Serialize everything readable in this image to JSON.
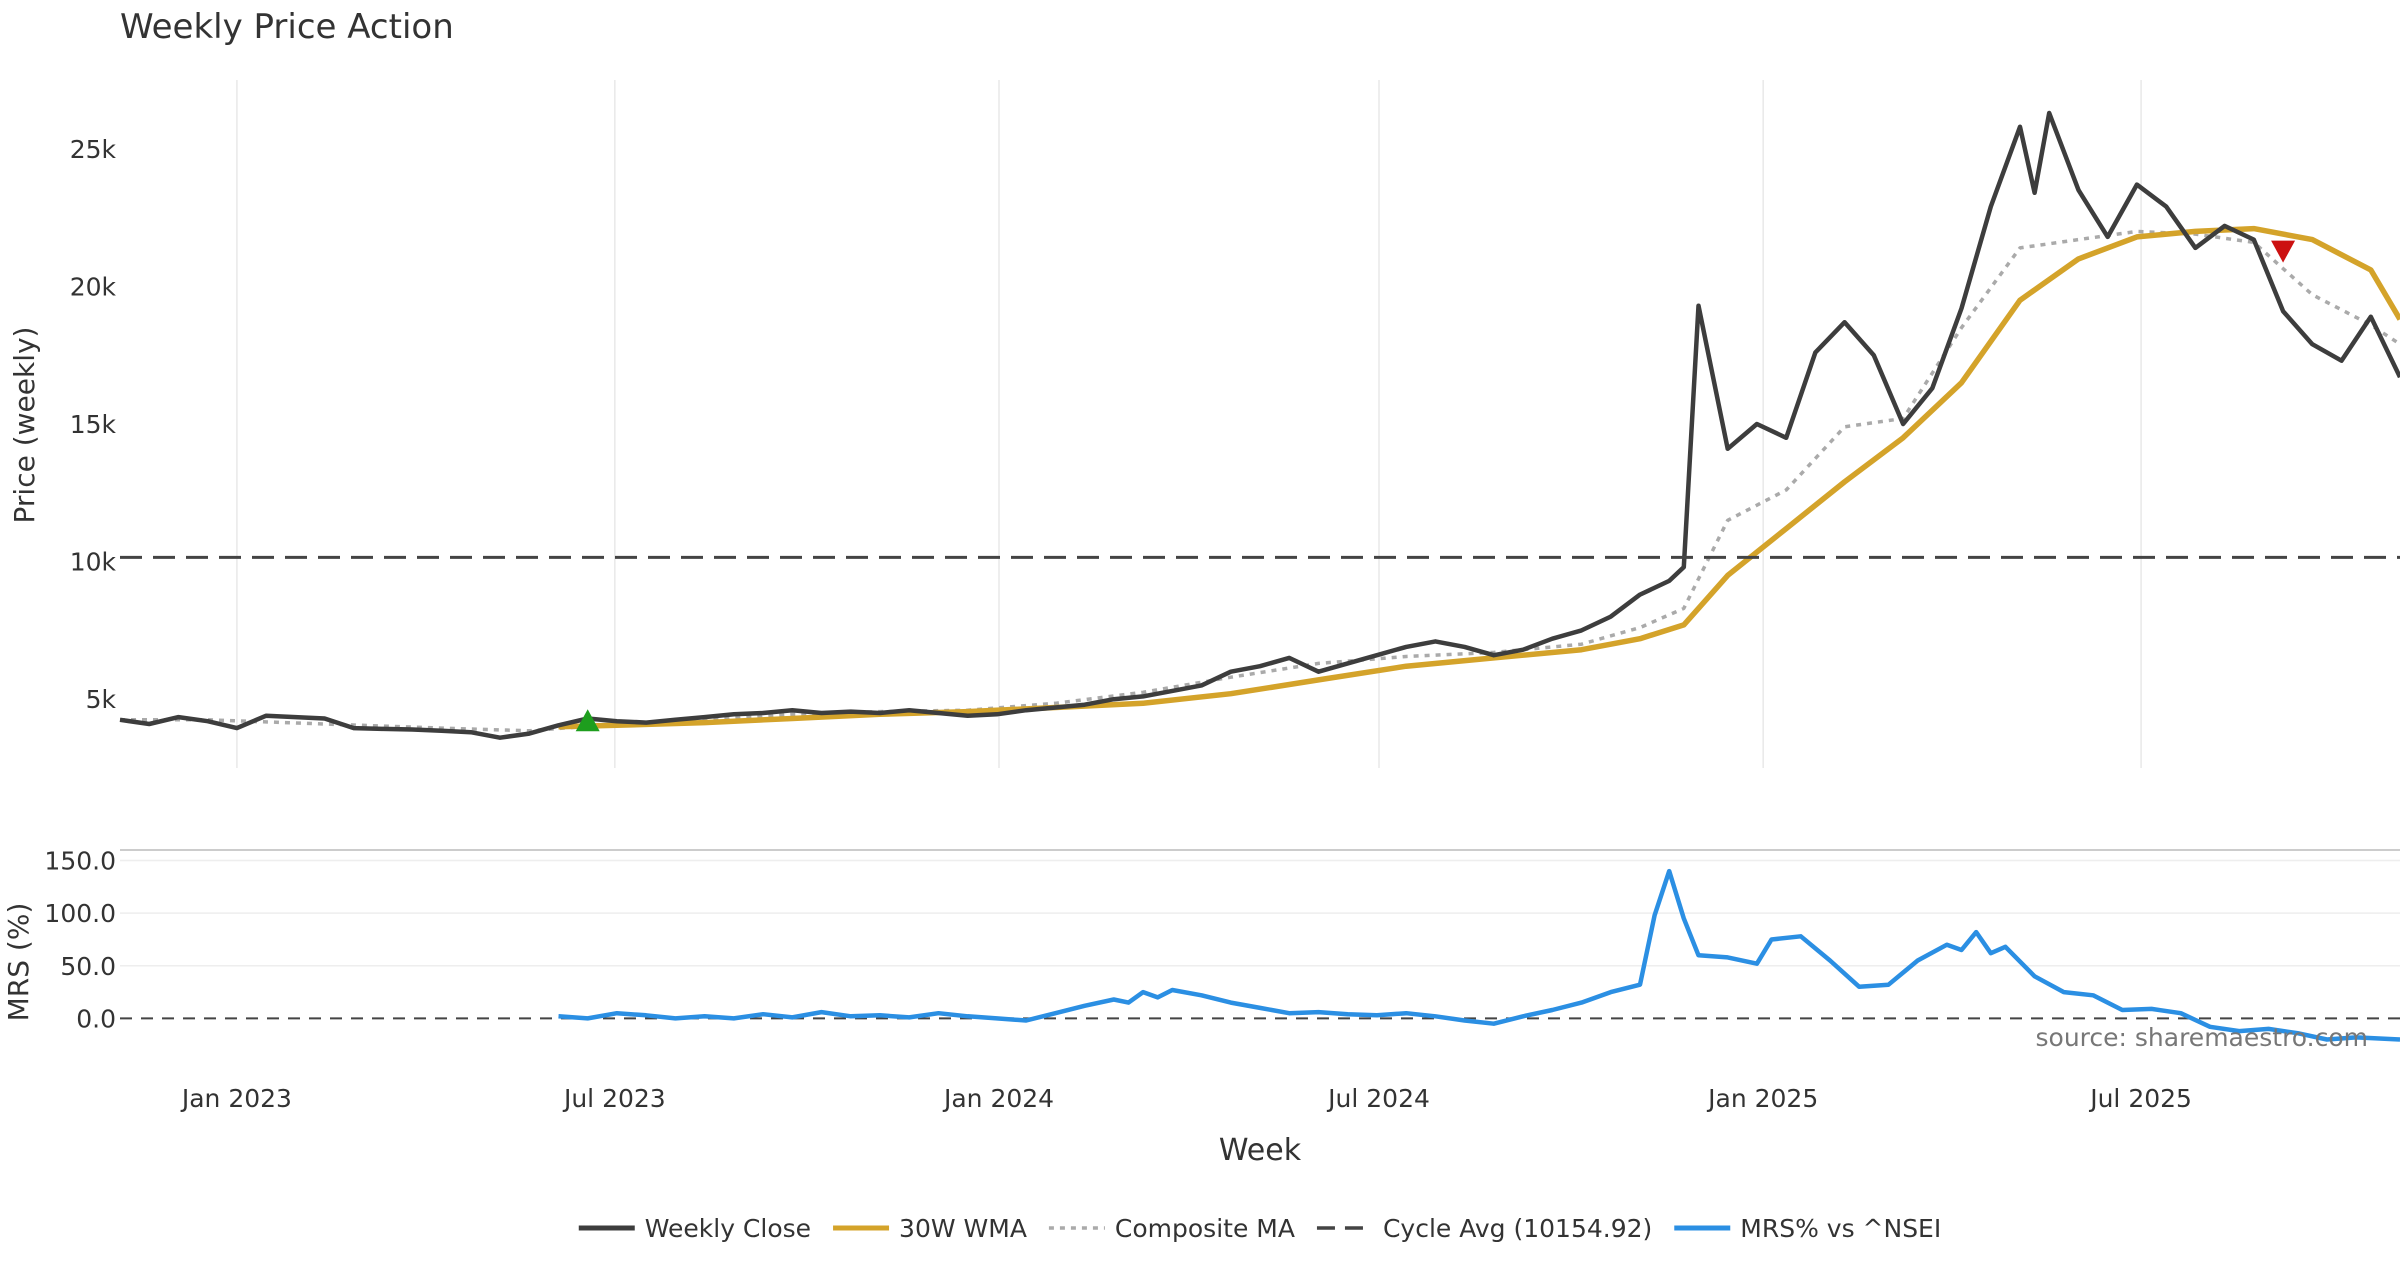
{
  "chart_data": [
    {
      "type": "line",
      "title": "Weekly Price Action",
      "ylabel": "Price (weekly)",
      "ylim": [
        2500,
        27500
      ],
      "y_ticks": [
        5000,
        10000,
        15000,
        20000,
        25000
      ],
      "y_tick_labels": [
        "5k",
        "10k",
        "15k",
        "20k",
        "25k"
      ],
      "x_range": [
        "2022-11-06",
        "2025-11-02"
      ],
      "x_ticks": [
        "2023-01-01",
        "2023-07-01",
        "2024-01-01",
        "2024-07-01",
        "2025-01-01",
        "2025-07-01"
      ],
      "x_tick_labels": [
        "Jan 2023",
        "Jul 2023",
        "Jan 2024",
        "Jul 2024",
        "Jan 2025",
        "Jul 2025"
      ],
      "xlabel": "Week",
      "grid": "vertical",
      "colors": {
        "close": "#3d3d3d",
        "wma": "#d4a32a",
        "composite": "#aaaaaa",
        "cycle": "#444444",
        "mrs": "#2b8fe3",
        "buy": "#1e9e1e",
        "sell": "#cc1111"
      },
      "series": [
        {
          "name": "Weekly Close",
          "points": [
            [
              "2022-11-06",
              4250
            ],
            [
              "2022-11-20",
              4100
            ],
            [
              "2022-12-04",
              4350
            ],
            [
              "2022-12-18",
              4200
            ],
            [
              "2023-01-01",
              3950
            ],
            [
              "2023-01-15",
              4400
            ],
            [
              "2023-01-29",
              4350
            ],
            [
              "2023-02-12",
              4300
            ],
            [
              "2023-02-26",
              3950
            ],
            [
              "2023-03-12",
              3920
            ],
            [
              "2023-03-26",
              3900
            ],
            [
              "2023-04-09",
              3850
            ],
            [
              "2023-04-23",
              3800
            ],
            [
              "2023-05-07",
              3600
            ],
            [
              "2023-05-21",
              3750
            ],
            [
              "2023-06-04",
              4050
            ],
            [
              "2023-06-18",
              4300
            ],
            [
              "2023-07-02",
              4200
            ],
            [
              "2023-07-16",
              4150
            ],
            [
              "2023-07-30",
              4250
            ],
            [
              "2023-08-13",
              4350
            ],
            [
              "2023-08-27",
              4450
            ],
            [
              "2023-09-10",
              4500
            ],
            [
              "2023-09-24",
              4600
            ],
            [
              "2023-10-08",
              4500
            ],
            [
              "2023-10-22",
              4550
            ],
            [
              "2023-11-05",
              4500
            ],
            [
              "2023-11-19",
              4600
            ],
            [
              "2023-12-03",
              4500
            ],
            [
              "2023-12-17",
              4400
            ],
            [
              "2023-12-31",
              4450
            ],
            [
              "2024-01-14",
              4600
            ],
            [
              "2024-01-28",
              4700
            ],
            [
              "2024-02-11",
              4800
            ],
            [
              "2024-02-25",
              5000
            ],
            [
              "2024-03-10",
              5100
            ],
            [
              "2024-03-24",
              5300
            ],
            [
              "2024-04-07",
              5500
            ],
            [
              "2024-04-21",
              6000
            ],
            [
              "2024-05-05",
              6200
            ],
            [
              "2024-05-19",
              6500
            ],
            [
              "2024-06-02",
              6000
            ],
            [
              "2024-06-16",
              6300
            ],
            [
              "2024-06-30",
              6600
            ],
            [
              "2024-07-14",
              6900
            ],
            [
              "2024-07-28",
              7100
            ],
            [
              "2024-08-11",
              6900
            ],
            [
              "2024-08-25",
              6600
            ],
            [
              "2024-09-08",
              6800
            ],
            [
              "2024-09-22",
              7200
            ],
            [
              "2024-10-06",
              7500
            ],
            [
              "2024-10-20",
              8000
            ],
            [
              "2024-11-03",
              8800
            ],
            [
              "2024-11-17",
              9300
            ],
            [
              "2024-11-24",
              9800
            ],
            [
              "2024-12-01",
              19300
            ],
            [
              "2024-12-15",
              14100
            ],
            [
              "2024-12-29",
              15000
            ],
            [
              "2025-01-12",
              14500
            ],
            [
              "2025-01-26",
              17600
            ],
            [
              "2025-02-09",
              18700
            ],
            [
              "2025-02-23",
              17500
            ],
            [
              "2025-03-09",
              15000
            ],
            [
              "2025-03-23",
              16300
            ],
            [
              "2025-04-06",
              19200
            ],
            [
              "2025-04-20",
              22900
            ],
            [
              "2025-05-04",
              25800
            ],
            [
              "2025-05-11",
              23400
            ],
            [
              "2025-05-18",
              26300
            ],
            [
              "2025-06-01",
              23500
            ],
            [
              "2025-06-15",
              21800
            ],
            [
              "2025-06-29",
              23700
            ],
            [
              "2025-07-13",
              22900
            ],
            [
              "2025-07-27",
              21400
            ],
            [
              "2025-08-10",
              22200
            ],
            [
              "2025-08-24",
              21700
            ],
            [
              "2025-09-07",
              19100
            ],
            [
              "2025-09-21",
              17900
            ],
            [
              "2025-10-05",
              17300
            ],
            [
              "2025-10-19",
              18900
            ],
            [
              "2025-11-02",
              16700
            ]
          ]
        },
        {
          "name": "30W WMA",
          "points": [
            [
              "2023-06-04",
              4000
            ],
            [
              "2023-07-02",
              4050
            ],
            [
              "2023-08-13",
              4150
            ],
            [
              "2023-09-24",
              4300
            ],
            [
              "2023-11-05",
              4450
            ],
            [
              "2023-12-17",
              4550
            ],
            [
              "2024-01-28",
              4700
            ],
            [
              "2024-03-10",
              4850
            ],
            [
              "2024-04-21",
              5200
            ],
            [
              "2024-06-02",
              5700
            ],
            [
              "2024-07-14",
              6200
            ],
            [
              "2024-08-25",
              6500
            ],
            [
              "2024-10-06",
              6800
            ],
            [
              "2024-11-03",
              7200
            ],
            [
              "2024-11-24",
              7700
            ],
            [
              "2024-12-15",
              9500
            ],
            [
              "2025-01-12",
              11200
            ],
            [
              "2025-02-09",
              12900
            ],
            [
              "2025-03-09",
              14500
            ],
            [
              "2025-04-06",
              16500
            ],
            [
              "2025-05-04",
              19500
            ],
            [
              "2025-06-01",
              21000
            ],
            [
              "2025-06-29",
              21800
            ],
            [
              "2025-07-27",
              22000
            ],
            [
              "2025-08-24",
              22100
            ],
            [
              "2025-09-21",
              21700
            ],
            [
              "2025-10-19",
              20600
            ],
            [
              "2025-11-02",
              18800
            ]
          ]
        },
        {
          "name": "Composite MA",
          "points": [
            [
              "2022-11-06",
              4250
            ],
            [
              "2022-12-18",
              4250
            ],
            [
              "2023-02-12",
              4100
            ],
            [
              "2023-04-09",
              3950
            ],
            [
              "2023-05-21",
              3850
            ],
            [
              "2023-07-02",
              4100
            ],
            [
              "2023-08-13",
              4250
            ],
            [
              "2023-09-24",
              4450
            ],
            [
              "2023-11-05",
              4550
            ],
            [
              "2023-12-17",
              4600
            ],
            [
              "2024-01-28",
              4850
            ],
            [
              "2024-03-10",
              5250
            ],
            [
              "2024-04-21",
              5800
            ],
            [
              "2024-06-02",
              6300
            ],
            [
              "2024-07-14",
              6550
            ],
            [
              "2024-08-25",
              6700
            ],
            [
              "2024-10-06",
              7000
            ],
            [
              "2024-11-03",
              7600
            ],
            [
              "2024-11-24",
              8300
            ],
            [
              "2024-12-15",
              11500
            ],
            [
              "2025-01-12",
              12600
            ],
            [
              "2025-02-09",
              14900
            ],
            [
              "2025-03-09",
              15200
            ],
            [
              "2025-04-06",
              18500
            ],
            [
              "2025-05-04",
              21400
            ],
            [
              "2025-06-01",
              21700
            ],
            [
              "2025-06-29",
              22000
            ],
            [
              "2025-07-27",
              21900
            ],
            [
              "2025-08-24",
              21600
            ],
            [
              "2025-09-21",
              19700
            ],
            [
              "2025-10-19",
              18600
            ],
            [
              "2025-11-02",
              17900
            ]
          ]
        },
        {
          "name": "Cycle Avg (10154.92)",
          "hline": 10154.92
        }
      ],
      "markers": [
        {
          "type": "buy",
          "x": "2023-06-18",
          "y": 4200
        },
        {
          "type": "sell",
          "x": "2025-09-07",
          "y": 21300
        }
      ]
    },
    {
      "type": "line",
      "ylabel": "MRS (%)",
      "ylim": [
        -30,
        160
      ],
      "y_ticks": [
        0,
        50,
        100,
        150
      ],
      "y_tick_labels": [
        "0.0",
        "50.0",
        "100.0",
        "150.0"
      ],
      "zero_line": true,
      "series": [
        {
          "name": "MRS% vs ^NSEI",
          "points": [
            [
              "2023-06-04",
              2
            ],
            [
              "2023-06-18",
              0
            ],
            [
              "2023-07-02",
              5
            ],
            [
              "2023-07-16",
              3
            ],
            [
              "2023-07-30",
              0
            ],
            [
              "2023-08-13",
              2
            ],
            [
              "2023-08-27",
              0
            ],
            [
              "2023-09-10",
              4
            ],
            [
              "2023-09-24",
              1
            ],
            [
              "2023-10-08",
              6
            ],
            [
              "2023-10-22",
              2
            ],
            [
              "2023-11-05",
              3
            ],
            [
              "2023-11-19",
              1
            ],
            [
              "2023-12-03",
              5
            ],
            [
              "2023-12-17",
              2
            ],
            [
              "2023-12-31",
              0
            ],
            [
              "2024-01-14",
              -2
            ],
            [
              "2024-01-28",
              5
            ],
            [
              "2024-02-11",
              12
            ],
            [
              "2024-02-25",
              18
            ],
            [
              "2024-03-03",
              15
            ],
            [
              "2024-03-10",
              25
            ],
            [
              "2024-03-17",
              20
            ],
            [
              "2024-03-24",
              27
            ],
            [
              "2024-04-07",
              22
            ],
            [
              "2024-04-21",
              15
            ],
            [
              "2024-05-05",
              10
            ],
            [
              "2024-05-19",
              5
            ],
            [
              "2024-06-02",
              6
            ],
            [
              "2024-06-16",
              4
            ],
            [
              "2024-06-30",
              3
            ],
            [
              "2024-07-14",
              5
            ],
            [
              "2024-07-28",
              2
            ],
            [
              "2024-08-11",
              -2
            ],
            [
              "2024-08-25",
              -5
            ],
            [
              "2024-09-08",
              2
            ],
            [
              "2024-09-22",
              8
            ],
            [
              "2024-10-06",
              15
            ],
            [
              "2024-10-20",
              25
            ],
            [
              "2024-11-03",
              32
            ],
            [
              "2024-11-10",
              98
            ],
            [
              "2024-11-17",
              140
            ],
            [
              "2024-11-24",
              95
            ],
            [
              "2024-12-01",
              60
            ],
            [
              "2024-12-15",
              58
            ],
            [
              "2024-12-29",
              52
            ],
            [
              "2025-01-05",
              75
            ],
            [
              "2025-01-19",
              78
            ],
            [
              "2025-02-02",
              55
            ],
            [
              "2025-02-16",
              30
            ],
            [
              "2025-03-02",
              32
            ],
            [
              "2025-03-16",
              55
            ],
            [
              "2025-03-30",
              70
            ],
            [
              "2025-04-06",
              65
            ],
            [
              "2025-04-13",
              82
            ],
            [
              "2025-04-20",
              62
            ],
            [
              "2025-04-27",
              68
            ],
            [
              "2025-05-11",
              40
            ],
            [
              "2025-05-25",
              25
            ],
            [
              "2025-06-08",
              22
            ],
            [
              "2025-06-22",
              8
            ],
            [
              "2025-07-06",
              9
            ],
            [
              "2025-07-20",
              5
            ],
            [
              "2025-08-03",
              -8
            ],
            [
              "2025-08-17",
              -12
            ],
            [
              "2025-08-31",
              -10
            ],
            [
              "2025-09-14",
              -14
            ],
            [
              "2025-09-28",
              -20
            ],
            [
              "2025-10-12",
              -18
            ],
            [
              "2025-11-02",
              -20
            ]
          ]
        }
      ],
      "annotation": "source: sharemaestro.com"
    }
  ],
  "legend": {
    "placement": "bottom-center",
    "items": [
      {
        "label": "Weekly Close",
        "style": "solid",
        "color": "#3d3d3d"
      },
      {
        "label": "30W WMA",
        "style": "solid",
        "color": "#d4a32a"
      },
      {
        "label": "Composite MA",
        "style": "dotted",
        "color": "#aaaaaa"
      },
      {
        "label": "Cycle Avg (10154.92)",
        "style": "dashed",
        "color": "#444444"
      },
      {
        "label": "MRS% vs ^NSEI",
        "style": "solid",
        "color": "#2b8fe3"
      }
    ]
  }
}
